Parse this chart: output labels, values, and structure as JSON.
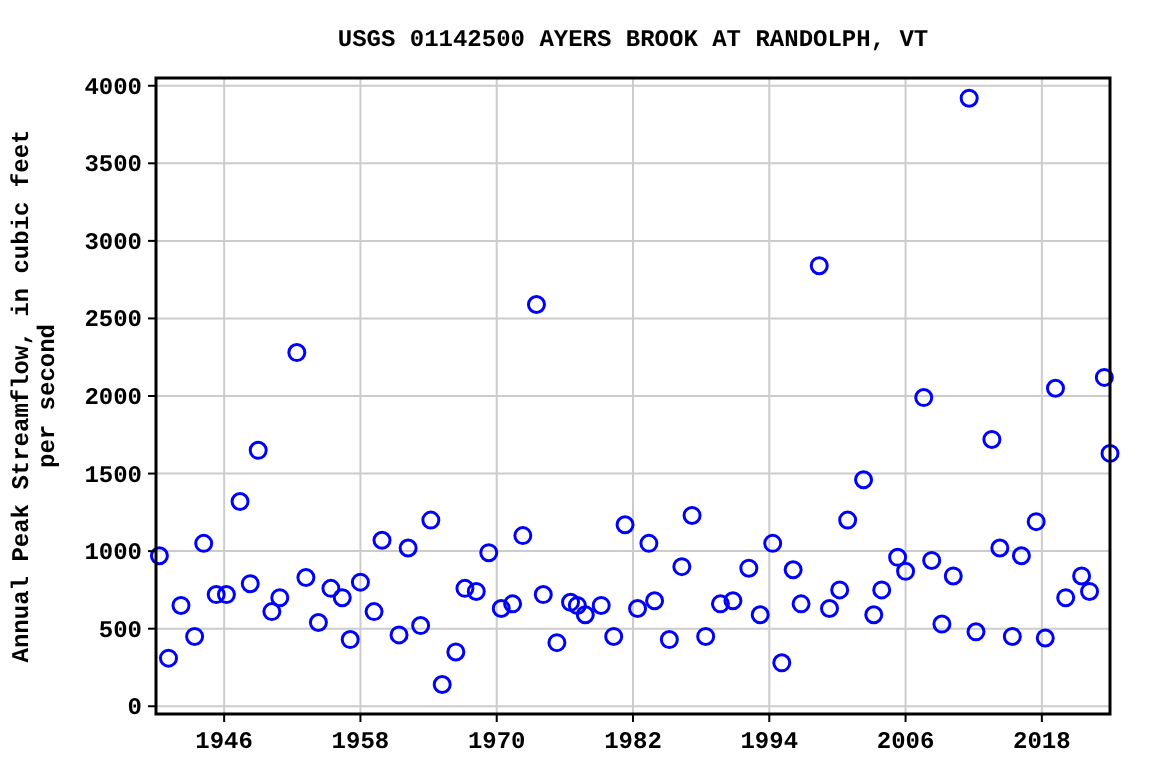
{
  "chart_data": {
    "type": "scatter",
    "title": "USGS 01142500 AYERS BROOK AT RANDOLPH, VT",
    "ylabel": "Annual Peak Streamflow, in cubic feet per second",
    "x": [
      1940.3,
      1941.1,
      1942.2,
      1943.4,
      1944.2,
      1945.3,
      1946.2,
      1947.4,
      1948.3,
      1949,
      1950.2,
      1950.9,
      1952.4,
      1953.2,
      1954.3,
      1955.4,
      1956.4,
      1957.1,
      1958,
      1959.2,
      1959.9,
      1961.4,
      1962.2,
      1963.3,
      1964.2,
      1965.2,
      1966.4,
      1967.2,
      1968.2,
      1969.3,
      1970.4,
      1971.4,
      1972.3,
      1973.5,
      1974.1,
      1975.3,
      1976.5,
      1977.1,
      1977.8,
      1979.2,
      1980.3,
      1981.3,
      1982.4,
      1983.4,
      1983.9,
      1985.2,
      1986.3,
      1987.2,
      1988.4,
      1989.7,
      1990.8,
      1992.2,
      1993.2,
      1994.3,
      1995.1,
      1996.1,
      1996.8,
      1998.4,
      1999.3,
      2000.2,
      2000.9,
      2002.3,
      2003.2,
      2003.9,
      2005.3,
      2006,
      2007.6,
      2008.3,
      2009.2,
      2010.2,
      2011.6,
      2012.2,
      2013.6,
      2014.3,
      2015.4,
      2016.2,
      2017.5,
      2018.3,
      2019.2,
      2020.1,
      2021.5,
      2022.2,
      2023.5,
      2024
    ],
    "series": [
      {
        "color": "#0000ff",
        "values": [
          970,
          310,
          650,
          450,
          1050,
          720,
          720,
          1320,
          790,
          1650,
          610,
          700,
          2280,
          830,
          540,
          760,
          700,
          430,
          800,
          610,
          1070,
          460,
          1020,
          520,
          1200,
          140,
          350,
          760,
          740,
          990,
          630,
          660,
          1100,
          2590,
          720,
          410,
          670,
          650,
          590,
          650,
          450,
          1170,
          630,
          1050,
          680,
          430,
          900,
          1230,
          450,
          660,
          680,
          890,
          590,
          1050,
          280,
          880,
          660,
          2840,
          630,
          750,
          1200,
          1460,
          590,
          750,
          960,
          870,
          1990,
          940,
          530,
          840,
          3920,
          480,
          1720,
          1020,
          450,
          970,
          1190,
          440,
          2050,
          700,
          840,
          740,
          2120,
          1630
        ]
      }
    ],
    "xlim": [
      1940,
      2024
    ],
    "ylim": [
      -50,
      4050
    ],
    "xticks": [
      1946,
      1958,
      1970,
      1982,
      1994,
      2006,
      2018
    ],
    "yticks": [
      0,
      500,
      1000,
      1500,
      2000,
      2500,
      3000,
      3500,
      4000
    ],
    "grid": true,
    "marker": "circle"
  }
}
